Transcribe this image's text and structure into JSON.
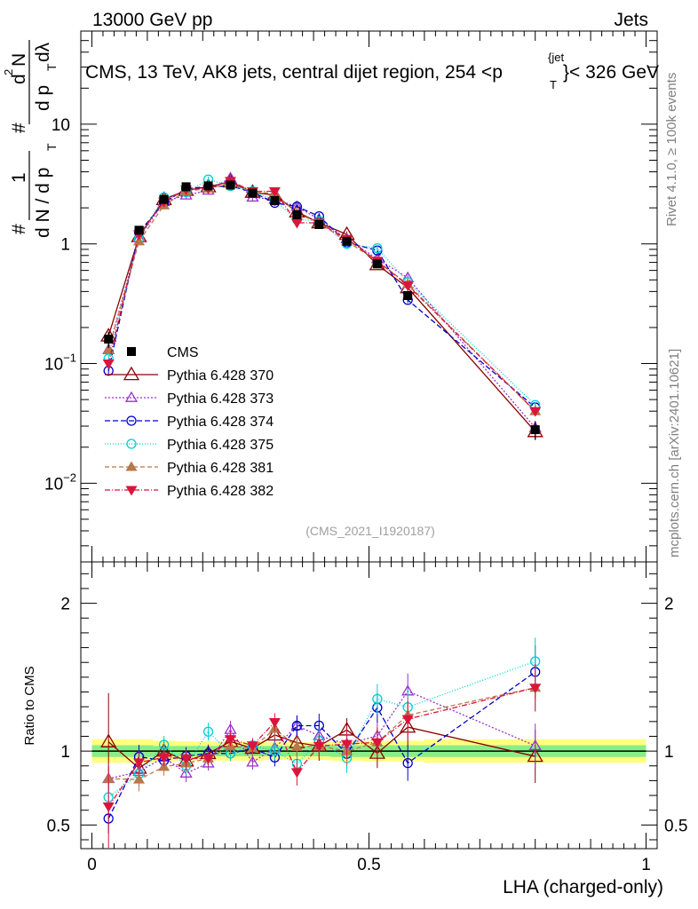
{
  "header": {
    "left": "13000 GeV pp",
    "right": "Jets"
  },
  "side": {
    "rivet": "Rivet 4.1.0, ≥ 100k events",
    "mcplots": "mcplots.cern.ch [arXiv:2401.10621]"
  },
  "chart_data": {
    "type": "scatter",
    "title": "CMS, 13 TeV, AK8 jets, central dijet region, 254 <p_T^{jet}< 326 GeV",
    "title_parts": {
      "prefix": "CMS, 13 TeV, AK8 jets, central dijet region, 254 <p",
      "sup": "{jet",
      "sub": "T",
      "suffix": "}< 326 GeV"
    },
    "ylabel_parts": [
      "#",
      "1",
      "d N / d p",
      "T",
      "#",
      "d",
      "N",
      "2",
      "d p",
      "T",
      "dλ"
    ],
    "analysis_label": "(CMS_2021_I1920187)",
    "xlabel": "LHA (charged-only)",
    "ratio_ylabel": "Ratio to CMS",
    "xlim": [
      -0.02,
      1.02
    ],
    "ylim": [
      0.0022,
      60
    ],
    "ratio_ylim": [
      0.34,
      2.28
    ],
    "y_ticks": [
      {
        "value": 0.01,
        "base": "10",
        "exp": "−2"
      },
      {
        "value": 0.1,
        "base": "10",
        "exp": "−1"
      },
      {
        "value": 1,
        "base": "1",
        "exp": ""
      },
      {
        "value": 10,
        "base": "10",
        "exp": ""
      }
    ],
    "x_ticks": [
      {
        "value": 0,
        "label": "0"
      },
      {
        "value": 0.5,
        "label": "0.5"
      },
      {
        "value": 1,
        "label": "1"
      }
    ],
    "ratio_ticks": [
      {
        "value": 0.5,
        "label": "0.5"
      },
      {
        "value": 1,
        "label": "1"
      },
      {
        "value": 2,
        "label": "2"
      }
    ],
    "x": [
      0.03,
      0.085,
      0.13,
      0.17,
      0.21,
      0.25,
      0.29,
      0.33,
      0.37,
      0.41,
      0.46,
      0.515,
      0.57,
      0.8
    ],
    "data": {
      "name": "CMS",
      "values": [
        0.16,
        1.3,
        2.35,
        3.0,
        3.05,
        3.1,
        2.65,
        2.3,
        1.75,
        1.45,
        1.05,
        0.68,
        0.37,
        0.028
      ],
      "errors": [
        0.025,
        0.07,
        0.08,
        0.08,
        0.08,
        0.08,
        0.07,
        0.07,
        0.06,
        0.05,
        0.05,
        0.04,
        0.03,
        0.005
      ],
      "band_inner": [
        0.04,
        0.04,
        0.035,
        0.035,
        0.035,
        0.035,
        0.035,
        0.035,
        0.035,
        0.035,
        0.04,
        0.04,
        0.04,
        0.04
      ],
      "band_outer": [
        0.08,
        0.08,
        0.07,
        0.065,
        0.065,
        0.065,
        0.065,
        0.06,
        0.06,
        0.06,
        0.065,
        0.07,
        0.07,
        0.08
      ]
    },
    "series": [
      {
        "name": "Pythia 6.428 370",
        "color": "#8b0000",
        "marker": "triangle-up-open",
        "dash": "",
        "values": [
          0.17,
          1.15,
          2.35,
          2.8,
          3.0,
          3.3,
          2.7,
          2.55,
          1.85,
          1.5,
          1.2,
          0.67,
          0.43,
          0.027
        ],
        "ratio_errors": [
          0.33,
          0.1,
          0.08,
          0.07,
          0.06,
          0.06,
          0.06,
          0.06,
          0.09,
          0.1,
          0.08,
          0.1,
          0.13,
          0.18
        ]
      },
      {
        "name": "Pythia 6.428 373",
        "color": "#9932cc",
        "marker": "triangle-up-open-small",
        "dash": "2,2",
        "values": [
          0.13,
          1.12,
          2.25,
          2.55,
          2.8,
          3.55,
          2.45,
          2.35,
          2.05,
          1.6,
          1.1,
          0.75,
          0.52,
          0.029
        ],
        "ratio_errors": [
          0.08,
          0.08,
          0.06,
          0.06,
          0.05,
          0.06,
          0.05,
          0.06,
          0.07,
          0.09,
          0.1,
          0.1,
          0.12,
          0.15
        ]
      },
      {
        "name": "Pythia 6.428 374",
        "color": "#0000cd",
        "marker": "circle-open",
        "dash": "6,3",
        "values": [
          0.087,
          1.25,
          2.2,
          2.9,
          3.0,
          3.05,
          2.7,
          2.2,
          2.05,
          1.7,
          1.03,
          0.88,
          0.34,
          0.043
        ],
        "ratio_errors": [
          0.1,
          0.08,
          0.06,
          0.06,
          0.05,
          0.05,
          0.05,
          0.06,
          0.07,
          0.08,
          0.1,
          0.1,
          0.12,
          0.18
        ]
      },
      {
        "name": "Pythia 6.428 375",
        "color": "#00ced1",
        "marker": "circle-open",
        "dash": "1,2",
        "values": [
          0.11,
          1.1,
          2.45,
          2.7,
          3.45,
          3.05,
          2.75,
          2.3,
          1.6,
          1.55,
          1.0,
          0.92,
          0.48,
          0.045
        ],
        "ratio_errors": [
          0.1,
          0.08,
          0.06,
          0.06,
          0.06,
          0.05,
          0.05,
          0.06,
          0.07,
          0.08,
          0.1,
          0.1,
          0.12,
          0.16
        ]
      },
      {
        "name": "Pythia 6.428 381",
        "color": "#b8784a",
        "marker": "triangle-up-filled",
        "dash": "5,3",
        "values": [
          0.13,
          1.05,
          2.1,
          2.75,
          2.9,
          3.2,
          2.7,
          2.65,
          1.8,
          1.5,
          1.05,
          0.72,
          0.46,
          0.04
        ],
        "ratio_errors": [
          0.1,
          0.08,
          0.06,
          0.06,
          0.05,
          0.05,
          0.05,
          0.06,
          0.07,
          0.08,
          0.1,
          0.1,
          0.12,
          0.16
        ]
      },
      {
        "name": "Pythia 6.428 382",
        "color": "#dc143c",
        "marker": "triangle-down-filled",
        "dash": "6,2,1,2",
        "values": [
          0.1,
          1.2,
          2.25,
          2.85,
          2.9,
          3.35,
          2.75,
          2.75,
          1.5,
          1.5,
          1.1,
          0.72,
          0.45,
          0.04
        ],
        "ratio_errors": [
          0.28,
          0.08,
          0.06,
          0.06,
          0.05,
          0.05,
          0.05,
          0.06,
          0.09,
          0.08,
          0.1,
          0.1,
          0.12,
          0.16
        ]
      }
    ]
  }
}
